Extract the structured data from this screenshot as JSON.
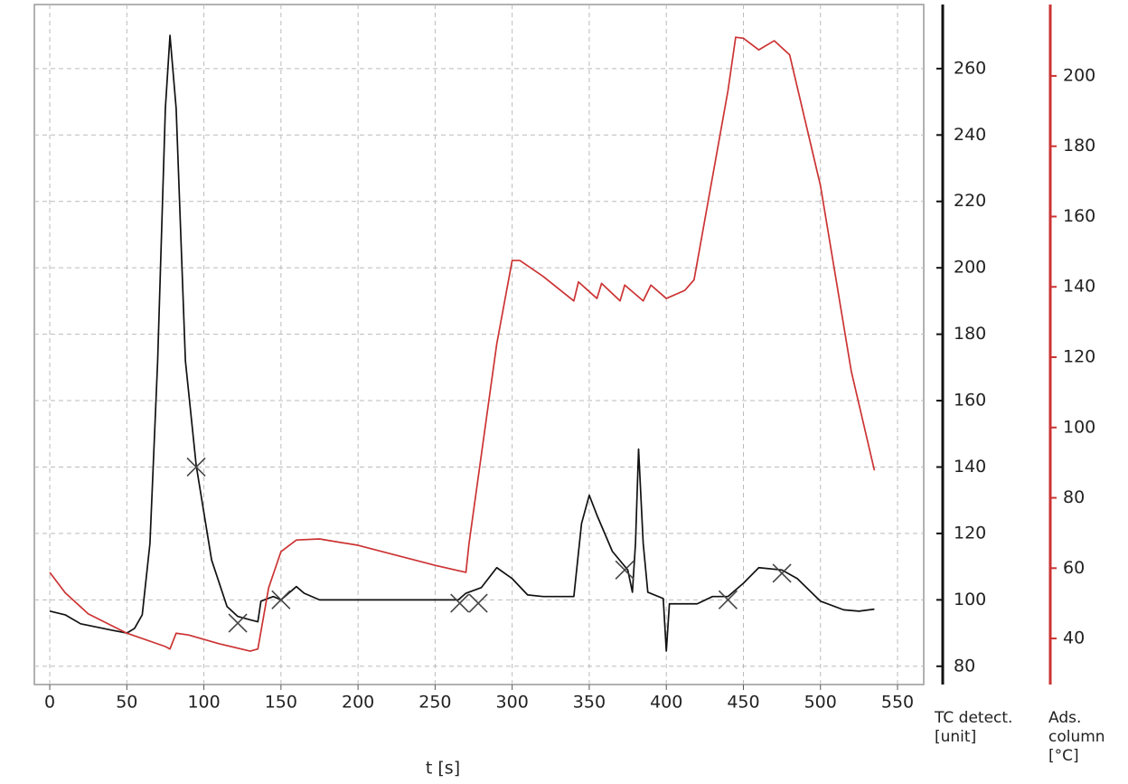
{
  "chart_data": {
    "type": "line",
    "xlabel": "t [s]",
    "ylabel_lines": [
      "TC detect.",
      "[unit]"
    ],
    "y2label_lines": [
      "Ads.",
      "column",
      "[°C]"
    ],
    "y_color": "#111111",
    "y2_color": "#cc3333",
    "xlim": [
      -10,
      567
    ],
    "xticks": [
      0,
      50,
      100,
      150,
      200,
      250,
      300,
      350,
      400,
      450,
      500,
      550
    ],
    "ylim": [
      74.5,
      279.3
    ],
    "yticks": [
      80,
      100,
      120,
      140,
      160,
      180,
      200,
      220,
      240,
      260
    ],
    "y2lim": [
      26.9,
      220.3
    ],
    "y2ticks": [
      40,
      60,
      80,
      100,
      120,
      140,
      160,
      180,
      200
    ],
    "grid": true,
    "series": [
      {
        "color": "#111111",
        "axis": "y",
        "x": [
          0,
          10,
          20,
          40,
          50,
          55,
          60,
          65,
          70,
          75,
          78,
          82,
          88,
          95,
          105,
          115,
          122,
          130,
          135,
          137,
          145,
          150,
          160,
          165,
          175,
          200,
          265,
          270,
          280,
          290,
          300,
          310,
          320,
          340,
          345,
          350,
          355,
          365,
          375,
          378,
          380,
          382,
          385,
          388,
          398,
          400,
          402,
          420,
          430,
          440,
          450,
          460,
          475,
          485,
          500,
          515,
          525,
          535
        ],
        "values": [
          96.6,
          95.5,
          92.8,
          90.9,
          90,
          91.4,
          95.5,
          117,
          172,
          248,
          270,
          248,
          172,
          140.5,
          112,
          98,
          95,
          94,
          93.4,
          99.6,
          101,
          100,
          104,
          102,
          100,
          100,
          100,
          102,
          103.7,
          109.7,
          106.4,
          101.5,
          101,
          101,
          123,
          131.5,
          125.5,
          114.6,
          109,
          102.3,
          117,
          145.4,
          117,
          102.3,
          100.4,
          84.6,
          98.8,
          98.8,
          101,
          101,
          105,
          109.7,
          109,
          106.4,
          99.6,
          97,
          96.6,
          97.2
        ]
      },
      {
        "color": "#cc3333",
        "axis": "y2",
        "x": [
          0,
          10,
          25,
          50,
          75,
          78,
          82,
          90,
          110,
          130,
          135,
          142,
          150,
          160,
          175,
          200,
          250,
          270,
          272,
          290,
          300,
          305,
          320,
          340,
          343,
          355,
          358,
          370,
          373,
          385,
          390,
          400,
          412,
          418,
          440,
          445,
          450,
          460,
          470,
          480,
          500,
          520,
          535
        ],
        "values": [
          58.8,
          53,
          47,
          41.5,
          37.7,
          37,
          41.5,
          41,
          38.5,
          36.4,
          37,
          54.4,
          64.7,
          68,
          68.3,
          66.5,
          60.8,
          58.8,
          67,
          123.8,
          147.5,
          147.5,
          143,
          136,
          141.4,
          136.7,
          141,
          136,
          140.5,
          136,
          140.5,
          136.7,
          139,
          142,
          195.8,
          211,
          210.7,
          207.4,
          210,
          206,
          168.8,
          116,
          87.8
        ]
      },
      {
        "color": "#444444",
        "axis": "y",
        "marker": "x",
        "x": [
          95,
          122,
          150,
          266,
          278,
          373,
          440,
          475
        ],
        "values": [
          140,
          93,
          100,
          99,
          99,
          109,
          100,
          108
        ]
      }
    ]
  }
}
